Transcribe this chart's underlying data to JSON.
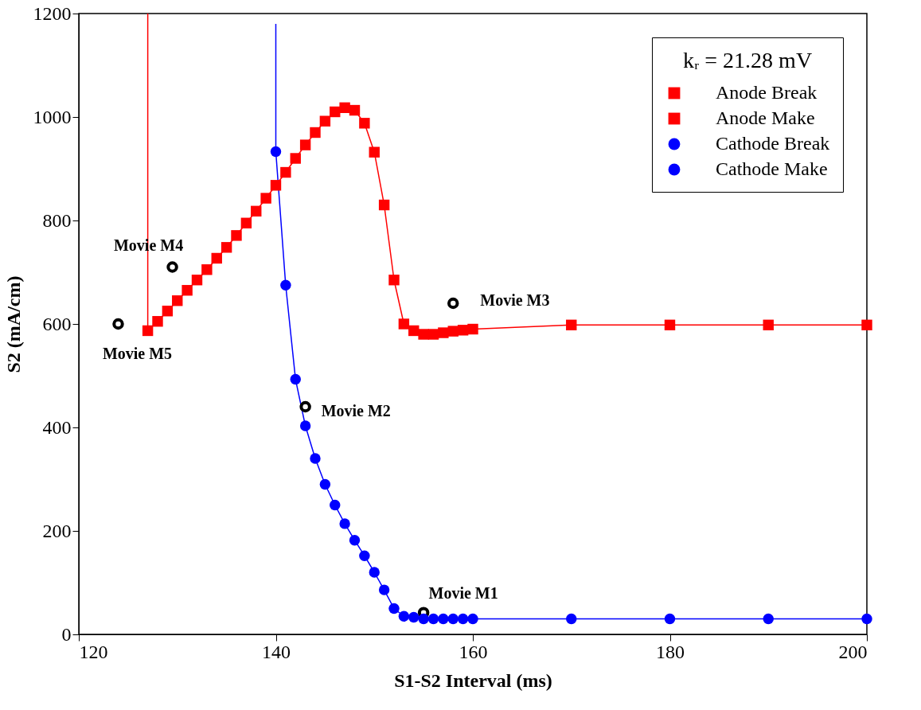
{
  "chart_data": {
    "type": "line",
    "xlabel": "S1-S2 Interval (ms)",
    "ylabel": "S2 (mA/cm)",
    "legend_title": "kᵣ = 21.28 mV",
    "xlim": [
      120,
      200
    ],
    "xticks": [
      120,
      140,
      160,
      180,
      200
    ],
    "ylim": [
      0,
      1200
    ],
    "yticks": [
      0,
      200,
      400,
      600,
      800,
      {
        "value": 1000,
        "label": "1000"
      },
      {
        "value": 1200,
        "label": "1200"
      }
    ],
    "grid": false,
    "legend": "top right",
    "line_style": "solid",
    "series": [
      {
        "name": "Anode Break",
        "color": "#ff0000",
        "marker": "square",
        "x": [
          127,
          128,
          129,
          130,
          131,
          132,
          133,
          134,
          135,
          136,
          137,
          138,
          139,
          140,
          141,
          142,
          143,
          144,
          145,
          146,
          147,
          148,
          149,
          150,
          151,
          152,
          153,
          154,
          155
        ],
        "values": [
          587,
          605,
          625,
          645,
          665,
          685,
          705,
          727,
          748,
          771,
          795,
          818,
          843,
          868,
          893,
          920,
          946,
          970,
          992,
          1010,
          1018,
          1013,
          988,
          932,
          830,
          685,
          600,
          587,
          580
        ]
      },
      {
        "name": "Anode Make",
        "color": "#ff0000",
        "marker": "square",
        "x": [
          156,
          157,
          158,
          159,
          160,
          170,
          180,
          190,
          200
        ],
        "values": [
          580,
          583,
          586,
          588,
          590,
          598,
          598,
          598,
          598
        ]
      },
      {
        "name": "Cathode Break",
        "color": "#0000ff",
        "marker": "circle",
        "x": [
          140,
          141,
          142,
          143,
          144,
          145,
          146,
          147,
          148,
          149,
          150,
          151,
          152,
          153,
          154
        ],
        "values": [
          933,
          675,
          493,
          403,
          340,
          290,
          250,
          214,
          182,
          152,
          120,
          86,
          50,
          35,
          33
        ]
      },
      {
        "name": "Cathode Make",
        "color": "#0000ff",
        "marker": "circle",
        "x": [
          155,
          156,
          157,
          158,
          159,
          160,
          170,
          180,
          190,
          200
        ],
        "values": [
          30,
          30,
          30,
          30,
          30,
          30,
          30,
          30,
          30,
          30
        ]
      },
      {
        "type": "line",
        "color": "#ff0000",
        "marker": "none",
        "x": [
          127,
          127
        ],
        "values": [
          587,
          1200
        ]
      },
      {
        "type": "line",
        "color": "#0000ff",
        "marker": "none",
        "x": [
          140,
          140
        ],
        "values": [
          933,
          1180
        ]
      },
      {
        "type": "scatter",
        "color": "#000000",
        "marker": "circle",
        "x": [
          155,
          143,
          158,
          129.5,
          124
        ],
        "values": [
          42,
          440,
          640,
          710,
          600
        ]
      }
    ],
    "annotations": [
      {
        "text": "Movie M1",
        "x": 155,
        "y": 42
      },
      {
        "text": "Movie M2",
        "x": 143,
        "y": 440
      },
      {
        "text": "Movie M3",
        "x": 158,
        "y": 640
      },
      {
        "text": "Movie M4",
        "x": 129.5,
        "y": 710
      },
      {
        "text": "Movie M5",
        "x": 124,
        "y": 600
      }
    ]
  }
}
